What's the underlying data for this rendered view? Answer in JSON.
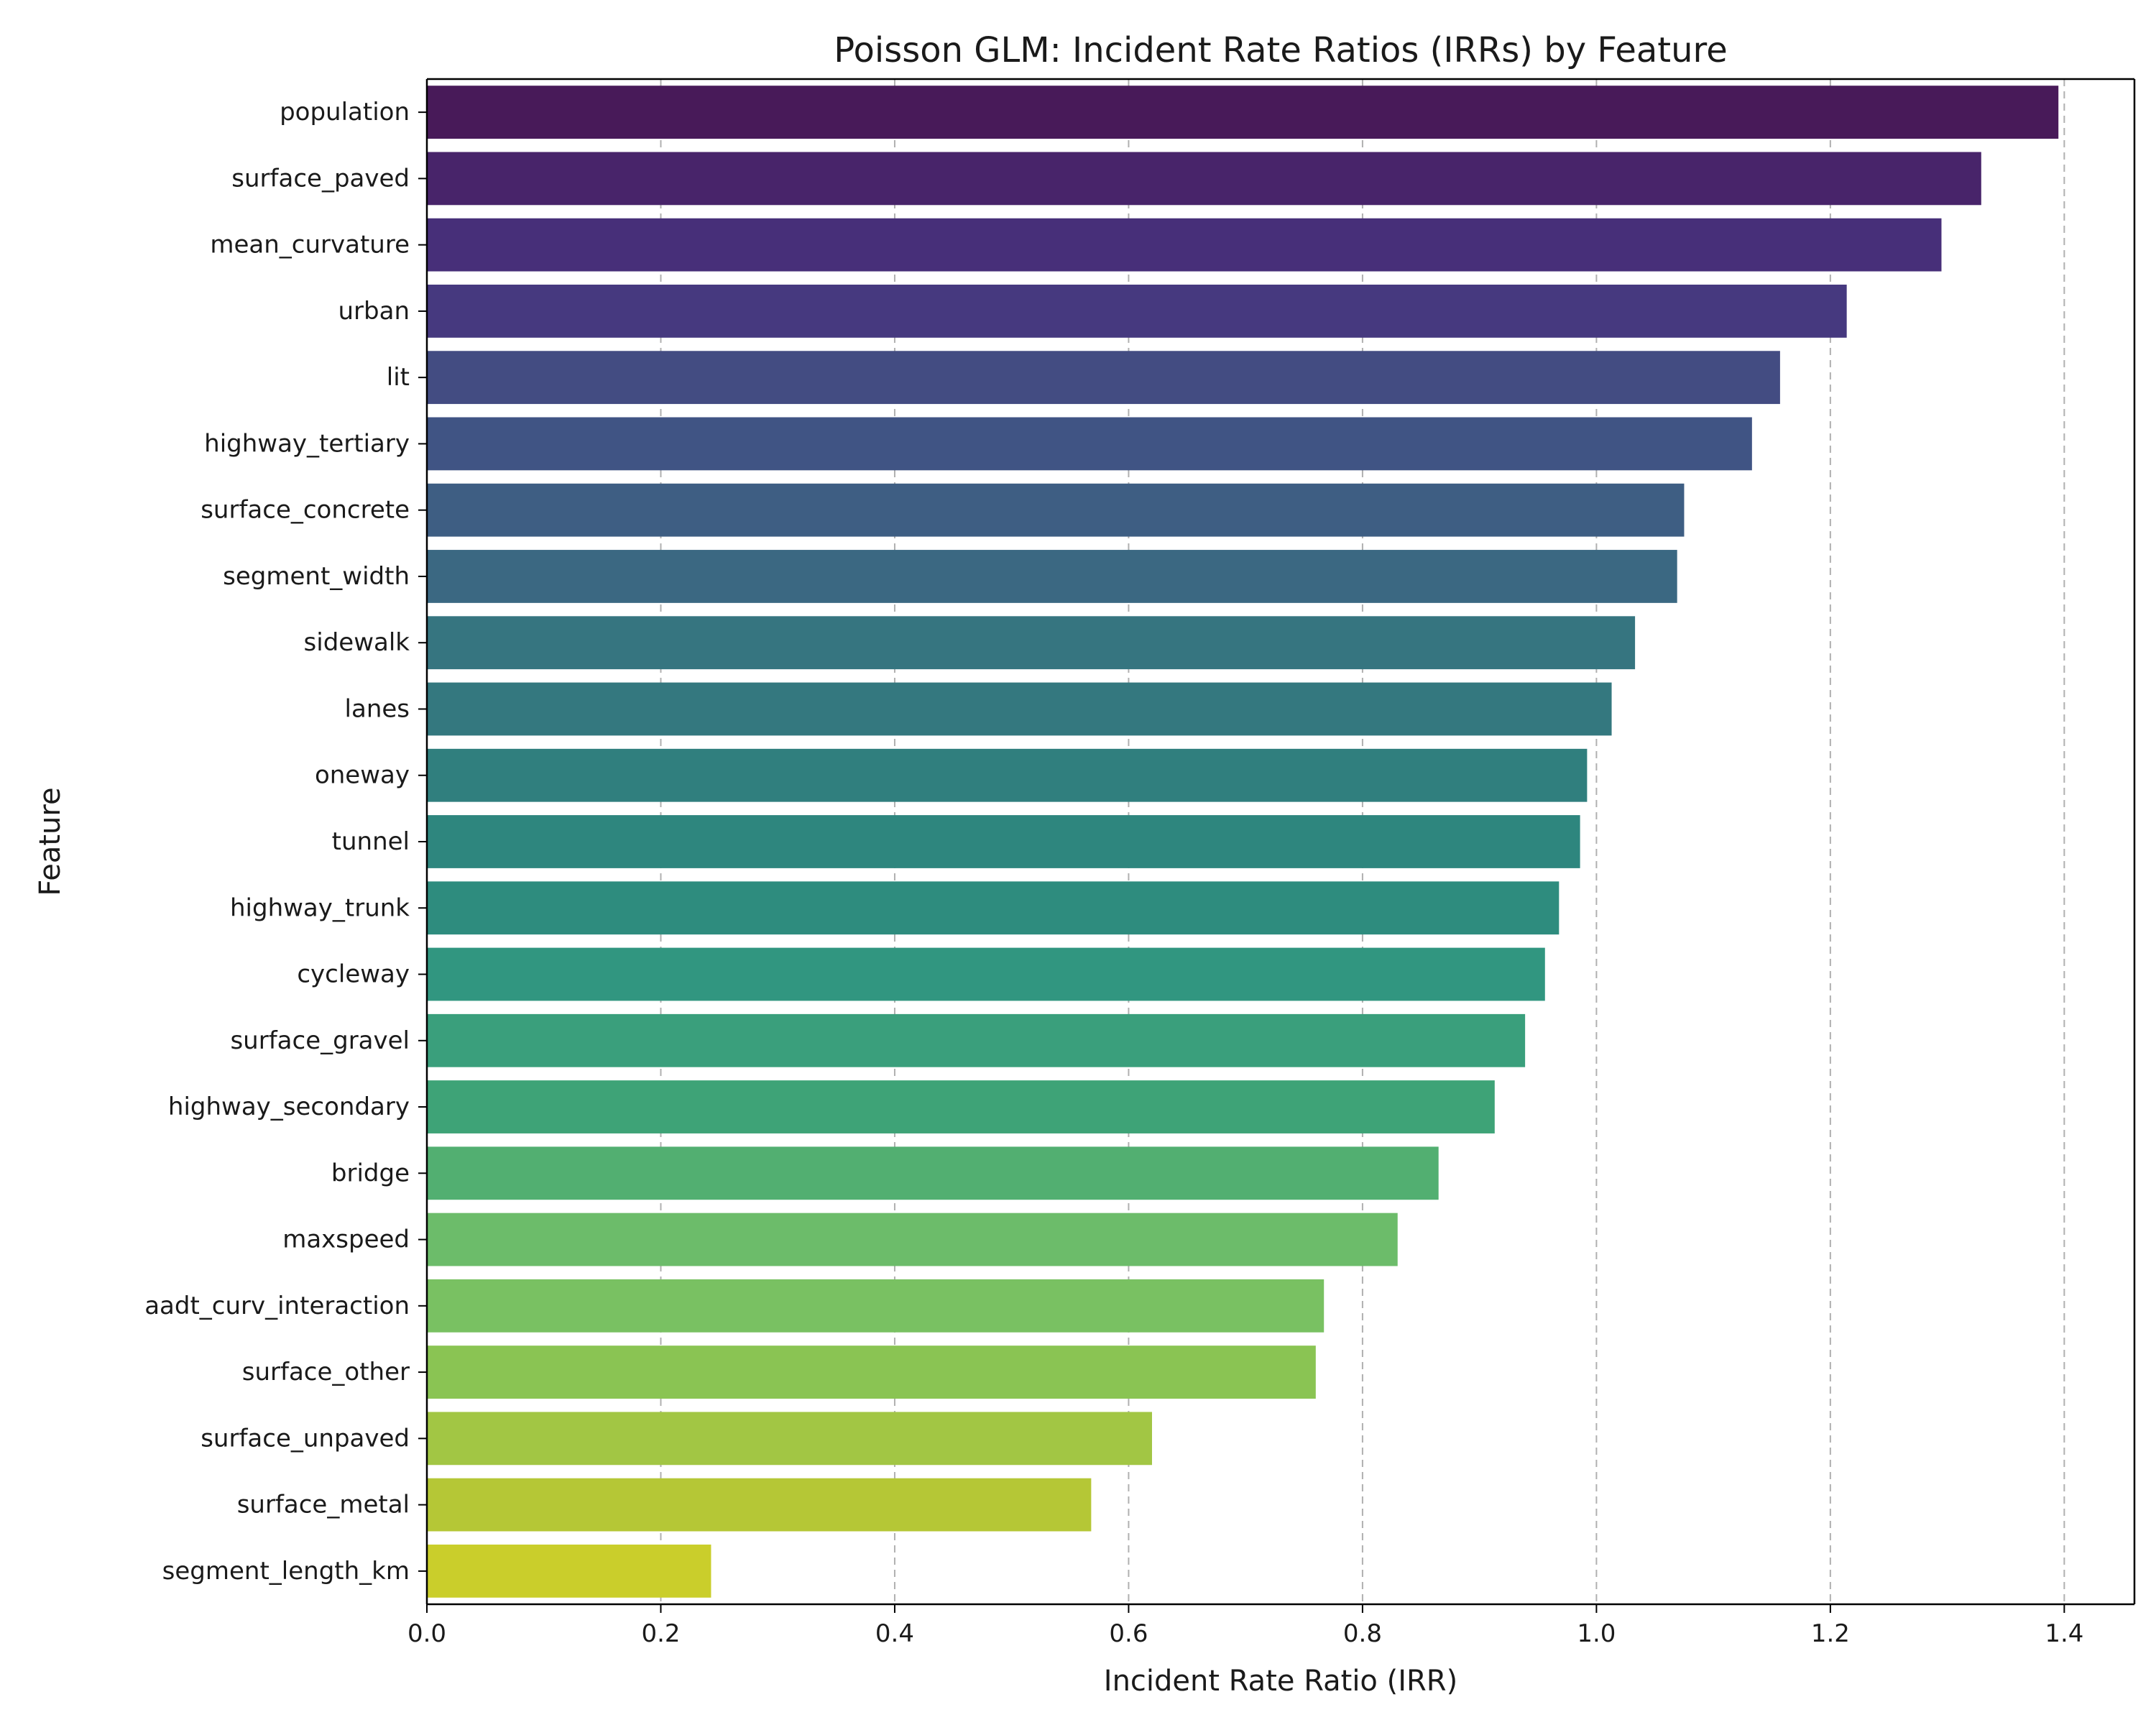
{
  "chart_data": {
    "type": "bar",
    "orientation": "horizontal",
    "title": "Poisson GLM: Incident Rate Ratios (IRRs) by Feature",
    "xlabel": "Incident Rate Ratio (IRR)",
    "ylabel": "Feature",
    "xlim": [
      0,
      1.46
    ],
    "xticks": [
      "0.0",
      "0.2",
      "0.4",
      "0.6",
      "0.8",
      "1.0",
      "1.2",
      "1.4"
    ],
    "grid": "x dashed",
    "categories": [
      "population",
      "surface_paved",
      "mean_curvature",
      "urban",
      "lit",
      "highway_tertiary",
      "surface_concrete",
      "segment_width",
      "sidewalk",
      "lanes",
      "oneway",
      "tunnel",
      "highway_trunk",
      "cycleway",
      "surface_gravel",
      "highway_secondary",
      "bridge",
      "maxspeed",
      "aadt_curv_interaction",
      "surface_other",
      "surface_unpaved",
      "surface_metal",
      "segment_length_km"
    ],
    "values": [
      1.395,
      1.329,
      1.295,
      1.214,
      1.157,
      1.133,
      1.075,
      1.069,
      1.033,
      1.013,
      0.992,
      0.986,
      0.968,
      0.956,
      0.939,
      0.913,
      0.865,
      0.83,
      0.767,
      0.76,
      0.62,
      0.568,
      0.243
    ],
    "colors": [
      "#481A59",
      "#48246A",
      "#472F79",
      "#46397F",
      "#434C82",
      "#405484",
      "#3E5E83",
      "#3B6882",
      "#367580",
      "#34787F",
      "#307F7E",
      "#2E867E",
      "#2E8C7E",
      "#319680",
      "#3A9F7C",
      "#3EA377",
      "#52AF71",
      "#6CBC6A",
      "#79C162",
      "#8AC453",
      "#A2C644",
      "#B5C736",
      "#CACE2B"
    ]
  }
}
